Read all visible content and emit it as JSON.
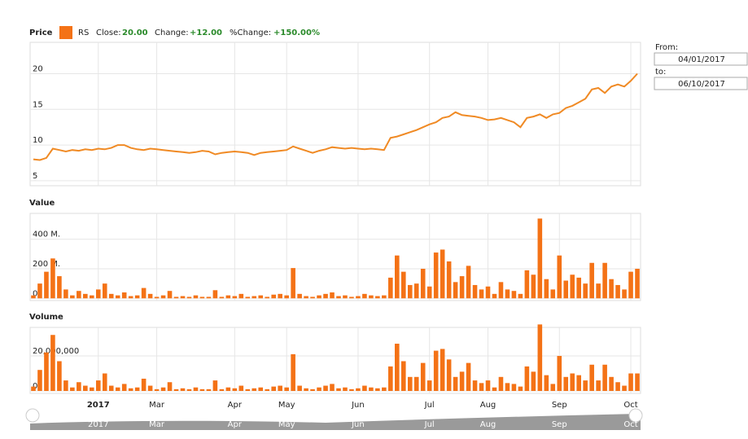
{
  "summary": {
    "series_name": "RS",
    "close_label": "Close:",
    "close": "20.00",
    "change_label": "Change:",
    "change": "+12.00",
    "pct_label": "%Change:",
    "pct": "+150.00%"
  },
  "range": {
    "from_label": "From:",
    "from": "04/01/2017",
    "to_label": "to:",
    "to": "06/10/2017"
  },
  "chart_data": [
    {
      "type": "line",
      "title": "Price",
      "color": "#f08a24",
      "swatch": "#f47216",
      "grid": true,
      "ylim": [
        4.3,
        24.4
      ],
      "yticks": [
        5,
        10,
        15,
        20
      ],
      "values": [
        8.0,
        7.9,
        8.2,
        9.5,
        9.3,
        9.1,
        9.3,
        9.2,
        9.4,
        9.3,
        9.5,
        9.4,
        9.6,
        10.0,
        10.0,
        9.6,
        9.4,
        9.3,
        9.5,
        9.4,
        9.3,
        9.2,
        9.1,
        9.0,
        8.9,
        9.0,
        9.2,
        9.1,
        8.7,
        8.9,
        9.0,
        9.1,
        9.0,
        8.9,
        8.6,
        8.9,
        9.0,
        9.1,
        9.2,
        9.3,
        9.8,
        9.5,
        9.2,
        8.9,
        9.2,
        9.4,
        9.7,
        9.6,
        9.5,
        9.6,
        9.5,
        9.4,
        9.5,
        9.4,
        9.3,
        11.0,
        11.2,
        11.5,
        11.8,
        12.1,
        12.5,
        12.9,
        13.2,
        13.8,
        14.0,
        14.6,
        14.2,
        14.1,
        14.0,
        13.8,
        13.5,
        13.6,
        13.8,
        13.5,
        13.2,
        12.5,
        13.8,
        14.0,
        14.3,
        13.8,
        14.3,
        14.5,
        15.2,
        15.5,
        16.0,
        16.5,
        17.8,
        18.0,
        17.3,
        18.2,
        18.5,
        18.2,
        19.0,
        20.0
      ]
    },
    {
      "type": "bar",
      "title": "Value",
      "color": "#f47216",
      "grid": true,
      "ylim": [
        -15,
        575
      ],
      "yticks": [
        {
          "value": 0,
          "label": "0"
        },
        {
          "value": 200,
          "label": "200 M."
        },
        {
          "value": 400,
          "label": "400 M."
        }
      ],
      "values": [
        20,
        100,
        180,
        270,
        150,
        60,
        20,
        50,
        30,
        20,
        60,
        100,
        30,
        20,
        40,
        15,
        20,
        70,
        30,
        10,
        20,
        50,
        10,
        15,
        10,
        20,
        10,
        10,
        55,
        10,
        20,
        15,
        30,
        10,
        15,
        20,
        10,
        25,
        30,
        20,
        205,
        30,
        15,
        10,
        20,
        30,
        40,
        15,
        20,
        10,
        15,
        30,
        20,
        15,
        20,
        140,
        290,
        180,
        90,
        100,
        200,
        80,
        310,
        330,
        250,
        110,
        150,
        220,
        90,
        60,
        80,
        30,
        110,
        60,
        50,
        30,
        190,
        160,
        540,
        130,
        60,
        290,
        120,
        160,
        140,
        100,
        240,
        100,
        240,
        130,
        90,
        60,
        180,
        200
      ]
    },
    {
      "type": "bar",
      "title": "Volume",
      "color": "#f47216",
      "grid": true,
      "ylim": [
        -1400000,
        36300000
      ],
      "yticks": [
        0,
        {
          "value": 20000000,
          "label": "20,000,000"
        }
      ],
      "categories": [
        null,
        null,
        null,
        null,
        null,
        null,
        null,
        null,
        null,
        null,
        "2017",
        null,
        null,
        null,
        null,
        null,
        null,
        null,
        null,
        "Mar",
        null,
        null,
        null,
        null,
        null,
        null,
        null,
        null,
        null,
        null,
        null,
        "Apr",
        null,
        null,
        null,
        null,
        null,
        null,
        null,
        "May",
        null,
        null,
        null,
        null,
        null,
        null,
        null,
        null,
        null,
        null,
        "Jun",
        null,
        null,
        null,
        null,
        null,
        null,
        null,
        null,
        null,
        null,
        "Jul",
        null,
        null,
        null,
        null,
        null,
        null,
        null,
        null,
        "Aug",
        null,
        null,
        null,
        null,
        null,
        null,
        null,
        null,
        null,
        null,
        "Sep",
        null,
        null,
        null,
        null,
        null,
        null,
        null,
        null,
        null,
        null,
        "Oct",
        null
      ],
      "values": [
        2500000,
        12000000,
        22000000,
        32000000,
        17000000,
        6000000,
        2000000,
        5000000,
        3000000,
        2000000,
        6000000,
        10000000,
        3000000,
        2000000,
        4000000,
        1500000,
        2000000,
        7000000,
        3000000,
        1000000,
        2000000,
        5000000,
        1000000,
        1500000,
        1000000,
        2000000,
        1000000,
        1000000,
        6000000,
        1000000,
        2000000,
        1500000,
        3000000,
        1000000,
        1500000,
        2000000,
        1000000,
        2500000,
        3000000,
        2000000,
        21000000,
        3000000,
        1500000,
        1000000,
        2000000,
        3000000,
        4000000,
        1500000,
        2000000,
        1000000,
        1500000,
        3000000,
        2000000,
        1500000,
        2000000,
        14000000,
        27000000,
        17000000,
        8000000,
        8000000,
        16000000,
        6000000,
        23000000,
        24000000,
        18000000,
        8000000,
        11000000,
        16000000,
        6000000,
        4500000,
        6000000,
        2000000,
        8000000,
        4500000,
        4000000,
        2500000,
        14000000,
        11000000,
        38000000,
        9000000,
        4000000,
        20000000,
        8000000,
        10000000,
        9000000,
        6000000,
        15000000,
        6000000,
        15000000,
        8000000,
        5000000,
        3000000,
        10000000,
        10000000
      ]
    }
  ]
}
